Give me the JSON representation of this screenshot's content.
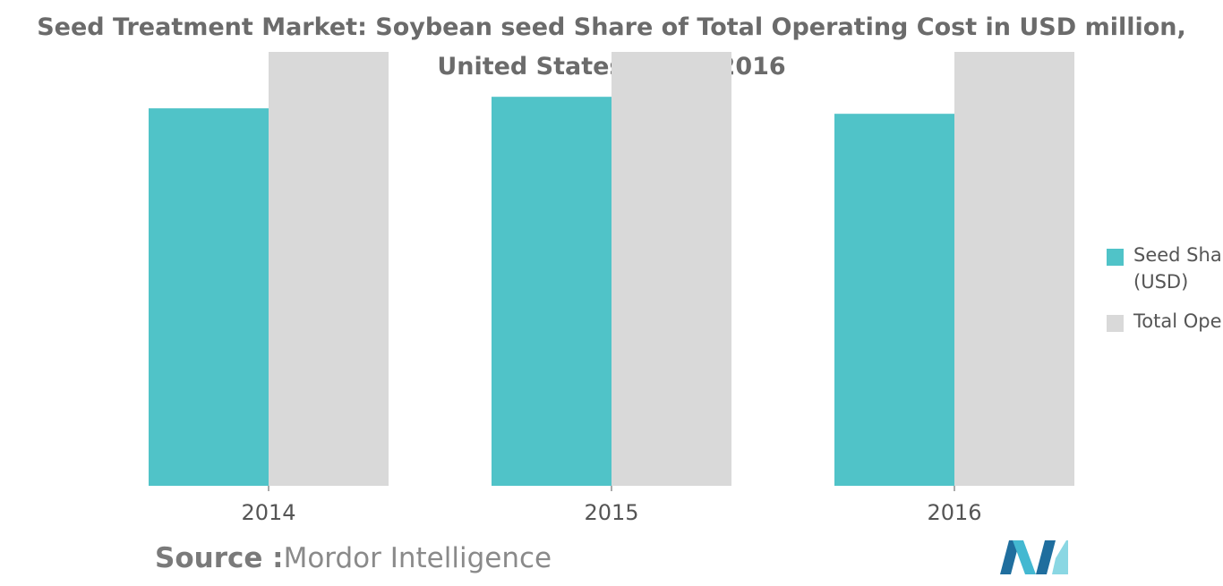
{
  "title": {
    "line1": "Seed Treatment Market: Soybean seed Share of Total Operating Cost in USD million,",
    "line2": "United States, 2014-2016"
  },
  "chart_data": {
    "type": "bar",
    "categories": [
      "2014",
      "2015",
      "2016"
    ],
    "series": [
      {
        "name": "Seed Share (USD)",
        "values": [
          62.2,
          64.1,
          61.3
        ],
        "color": "#50c3c8"
      },
      {
        "name": "Total Operating Cost (USD)",
        "values": [
          71.5,
          71.5,
          71.5
        ],
        "color": "#d9d9d9"
      }
    ],
    "ylim": [
      0,
      71.5
    ],
    "grid": false,
    "legend_position": "right"
  },
  "legend": {
    "items": [
      {
        "label_line1": "Seed Share",
        "label_line2": "(USD)",
        "swatch": "#50c3c8"
      },
      {
        "label_line1": "Total Operating Cost (USD)",
        "swatch": "#d9d9d9"
      }
    ]
  },
  "source": {
    "label": "Source :",
    "text": "Mordor Intelligence"
  },
  "logo": {
    "icon": "mordor-intelligence-logo-icon",
    "colors": [
      "#1f6e9e",
      "#43b8d1",
      "#8ad7e3"
    ]
  }
}
